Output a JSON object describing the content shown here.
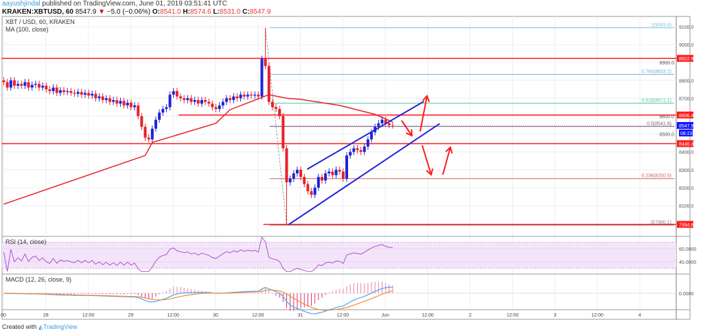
{
  "header": {
    "user": "aayushjindal",
    "published": "published on TradingView.com, June 01, 2019 03:51:41 UTC",
    "symbol": "KRAKEN:XBTUSD, 60",
    "last": "8547.9",
    "change": "−5.0 (−0.06%)",
    "o_label": "O:",
    "o": "8541.0",
    "h_label": "H:",
    "h": "8574.6",
    "l_label": "L:",
    "l": "8531.0",
    "c_label": "C:",
    "c": "8547.9"
  },
  "pane_labels": {
    "main": "XBT / USD, 60, KRAKEN",
    "ma": "MA (100, close)",
    "rsi": "RSI (14, close)",
    "macd": "MACD (12, 26, close, 9)"
  },
  "footer": {
    "created": "Created with",
    "brand": "TradingView"
  },
  "colors": {
    "up": "#1e24d6",
    "down": "#e8202a",
    "ma": "#e8202a",
    "trend": "#1e24d6",
    "axis_red": "#ff1a1a",
    "axis_blue": "#1212ff",
    "rsi": "#b04fd0",
    "macd": "#4aa8f0",
    "signal": "#f5883a"
  },
  "chart_data": {
    "type": "candlestick",
    "title": "XBT / USD, 60, KRAKEN",
    "ylim": [
      7930,
      9140
    ],
    "y_ticks": [
      "9100.0",
      "9000.0",
      "8900.0",
      "8800.0",
      "8700.0",
      "8600.0",
      "8500.0",
      "8400.0",
      "8300.0",
      "8200.0",
      "8100.0"
    ],
    "y_tick_values": [
      9100,
      9000,
      8900,
      8800,
      8700,
      8600,
      8500,
      8400,
      8300,
      8200,
      8100
    ],
    "x_ticks": [
      "00",
      "28",
      "12:00",
      "29",
      "12:00",
      "30",
      "12:00",
      "31",
      "12:00",
      "Jun",
      "12:00",
      "2",
      "12:00",
      "3",
      "12:00",
      "4"
    ],
    "x_tick_hours": [
      0,
      12,
      24,
      36,
      48,
      60,
      72,
      84,
      96,
      108,
      120,
      132,
      144,
      156,
      168,
      180
    ],
    "closes": [
      8790,
      8760,
      8800,
      8770,
      8780,
      8770,
      8790,
      8760,
      8775,
      8780,
      8760,
      8770,
      8750,
      8740,
      8760,
      8730,
      8745,
      8735,
      8740,
      8730,
      8725,
      8735,
      8720,
      8730,
      8715,
      8725,
      8700,
      8710,
      8690,
      8700,
      8680,
      8690,
      8670,
      8685,
      8660,
      8675,
      8650,
      8660,
      8600,
      8540,
      8480,
      8470,
      8530,
      8580,
      8620,
      8640,
      8650,
      8720,
      8740,
      8710,
      8700,
      8690,
      8700,
      8680,
      8690,
      8670,
      8690,
      8680,
      8670,
      8650,
      8640,
      8660,
      8680,
      8700,
      8690,
      8710,
      8700,
      8720,
      8710,
      8720,
      8715,
      8720,
      8710,
      8920,
      8880,
      8680,
      8650,
      8640,
      8600,
      8420,
      8230,
      8250,
      8280,
      8300,
      8260,
      8220,
      8180,
      8160,
      8200,
      8260,
      8240,
      8280,
      8290,
      8270,
      8300,
      8290,
      8250,
      8380,
      8400,
      8420,
      8410,
      8400,
      8430,
      8470,
      8510,
      8540,
      8560,
      8580,
      8560,
      8550,
      8547.9
    ],
    "swing_high": {
      "index": 74,
      "price": 9093.6
    },
    "swing_low": {
      "index": 80,
      "price": 7990.1
    },
    "ma100": [
      [
        0,
        8108
      ],
      [
        40,
        8380
      ],
      [
        42,
        8453
      ],
      [
        60,
        8560
      ],
      [
        64,
        8636
      ],
      [
        75,
        8720
      ],
      [
        80,
        8700
      ],
      [
        84,
        8694
      ],
      [
        95,
        8660
      ],
      [
        105,
        8610
      ],
      [
        110,
        8567
      ]
    ],
    "trendlines": [
      [
        [
          85.8,
          8303
        ],
        [
          118.8,
          8682
        ]
      ],
      [
        [
          80.6,
          7994
        ],
        [
          123.3,
          8558
        ]
      ]
    ],
    "horizontal_levels": [
      {
        "label": "8922.9",
        "price": 8922.9,
        "from": 0
      },
      {
        "label": "8606.4",
        "price": 8606.4,
        "from": 50
      },
      {
        "label": "8446.3",
        "price": 8446.3,
        "from": 0
      },
      {
        "label": "7994.8",
        "price": 7994.8,
        "from": 74
      }
    ],
    "last_price": {
      "label": "8547.9",
      "countdown": "08:23",
      "price": 8547.9
    },
    "fib_levels": [
      {
        "label": "1(9093.6)",
        "price": 9093.6,
        "color": "#7fc4e8"
      },
      {
        "label": "0.764(8833.2)",
        "price": 8833.2,
        "color": "#6db0dc"
      },
      {
        "label": "0.618(8672.1)",
        "price": 8672.1,
        "color": "#4cc6a0"
      },
      {
        "label": "0.5(8541.9)",
        "price": 8541.9,
        "color": "#806070"
      },
      {
        "label": "0.236(8250.5)",
        "price": 8250.5,
        "color": "#d06060"
      },
      {
        "label": "0(7990.1)",
        "price": 7990.1,
        "color": "#808080"
      }
    ],
    "rsi_ticks": [
      "60.0000",
      "40.0000"
    ],
    "macd_ticks": [
      "0.0000"
    ]
  }
}
